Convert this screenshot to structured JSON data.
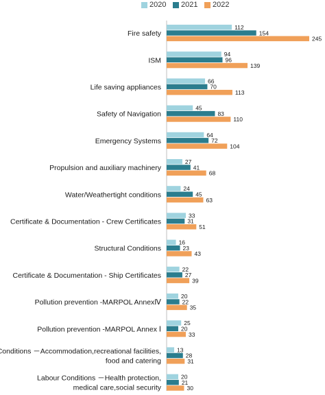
{
  "chart_data": {
    "type": "bar",
    "orientation": "horizontal",
    "title": "",
    "xlabel": "",
    "ylabel": "",
    "legend": "top",
    "grid": false,
    "xlim": [
      0,
      245
    ],
    "categories": [
      "Fire safety",
      "ISM",
      "Life saving appliances",
      "Safety of Navigation",
      "Emergency Systems",
      "Propulsion and auxiliary machinery",
      "Water/Weathertight conditions",
      "Certificate & Documentation - Crew Certificates",
      "Structural Conditions",
      "Certificate & Documentation - Ship Certificates",
      "Pollution prevention -MARPOL AnnexⅣ",
      "Pollution prevention -MARPOL Annex Ⅰ",
      "Labour Conditions －Accommodation,recreational facilities,food and catering",
      "Labour Conditions －Health protection,medical care,social security"
    ],
    "series": [
      {
        "name": "2020",
        "color": "#9fd3df",
        "values": [
          112,
          94,
          66,
          45,
          64,
          27,
          24,
          33,
          16,
          22,
          20,
          25,
          13,
          20
        ]
      },
      {
        "name": "2021",
        "color": "#2b7d8e",
        "values": [
          154,
          96,
          70,
          83,
          72,
          41,
          45,
          31,
          23,
          27,
          22,
          20,
          28,
          21
        ]
      },
      {
        "name": "2022",
        "color": "#f0a059",
        "values": [
          245,
          139,
          113,
          110,
          104,
          68,
          63,
          51,
          43,
          39,
          35,
          33,
          31,
          30
        ]
      }
    ]
  }
}
